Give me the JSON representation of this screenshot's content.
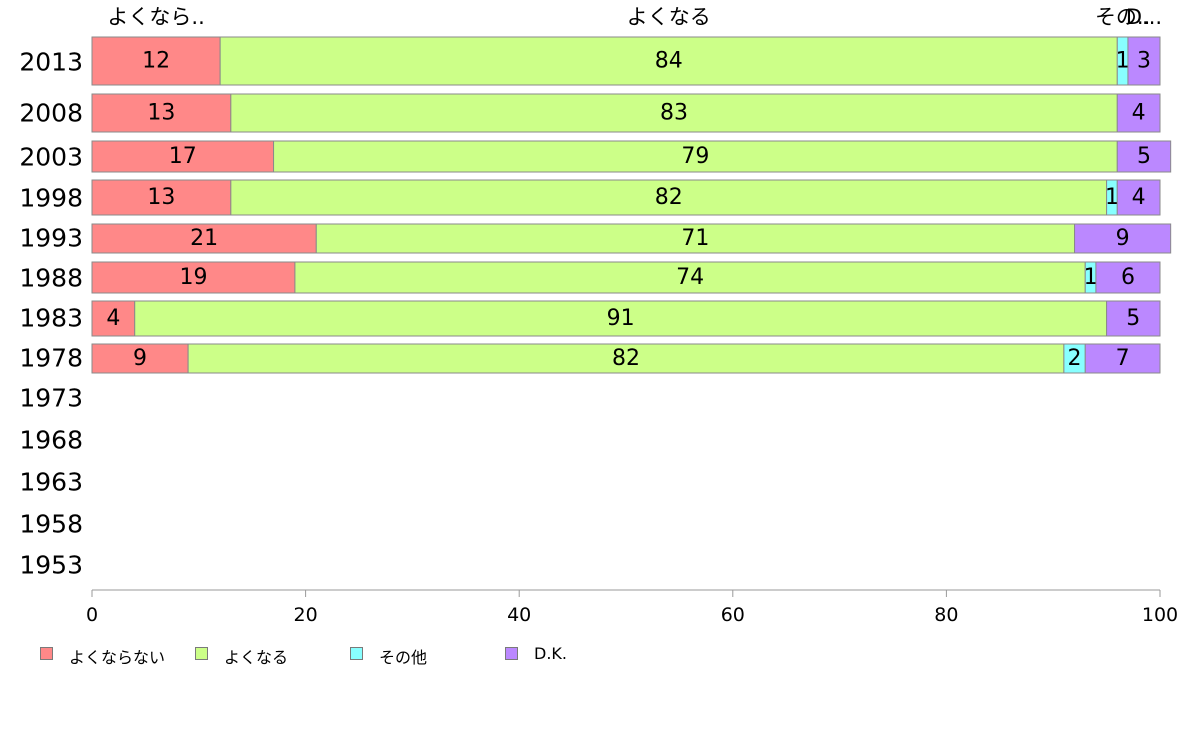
{
  "chart_data": {
    "type": "bar",
    "orientation": "horizontal",
    "stacked": true,
    "categories": [
      "2013",
      "2008",
      "2003",
      "1998",
      "1993",
      "1988",
      "1983",
      "1978",
      "1973",
      "1968",
      "1963",
      "1958",
      "1953"
    ],
    "series": [
      {
        "name": "よくならない",
        "color": "#ff8888",
        "values": [
          12,
          13,
          17,
          13,
          21,
          19,
          4,
          9,
          null,
          null,
          null,
          null,
          null
        ]
      },
      {
        "name": "よくなる",
        "color": "#ccff88",
        "values": [
          84,
          83,
          79,
          82,
          71,
          74,
          91,
          82,
          null,
          null,
          null,
          null,
          null
        ]
      },
      {
        "name": "その他",
        "color": "#88ffff",
        "values": [
          1,
          0,
          0,
          1,
          0,
          1,
          0,
          2,
          null,
          null,
          null,
          null,
          null
        ]
      },
      {
        "name": "D.K.",
        "color": "#bb88ff",
        "values": [
          3,
          4,
          5,
          4,
          9,
          6,
          5,
          7,
          null,
          null,
          null,
          null,
          null
        ]
      }
    ],
    "top_labels": [
      "よくなら..",
      "よくなる",
      "その..",
      "D..."
    ],
    "xlim": [
      0,
      100
    ],
    "xticks": [
      "0",
      "20",
      "40",
      "60",
      "80",
      "100"
    ],
    "grid": false,
    "legend": "bottom-left"
  }
}
